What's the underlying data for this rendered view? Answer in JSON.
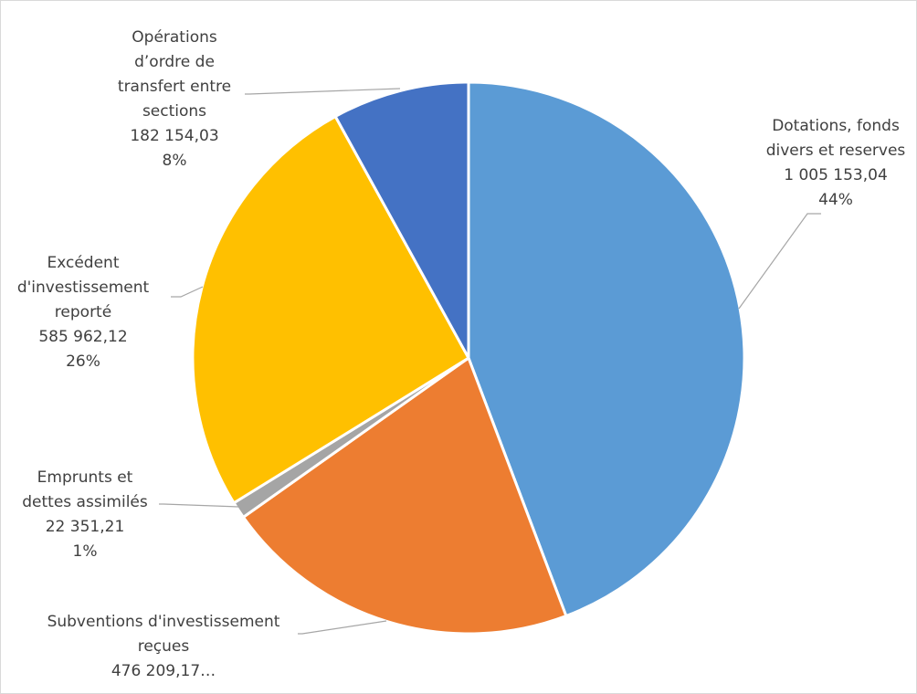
{
  "chart_data": {
    "type": "pie",
    "title": "",
    "slices": [
      {
        "name": "Dotations, fonds divers et reserves",
        "value": 1005153.04,
        "percent": 44,
        "color": "#5b9bd5",
        "label_lines": [
          "Dotations, fonds",
          "divers et reserves",
          "1 005 153,04",
          "44%"
        ]
      },
      {
        "name": "Subventions d'investissement reçues",
        "value": 476209.17,
        "percent": 21,
        "color": "#ed7d31",
        "label_lines": [
          "Subventions d'investissement",
          "reçues",
          "476 209,17…"
        ]
      },
      {
        "name": "Emprunts et dettes assimilés",
        "value": 22351.21,
        "percent": 1,
        "color": "#a5a5a5",
        "label_lines": [
          "Emprunts et",
          "dettes assimilés",
          "22 351,21",
          "1%"
        ]
      },
      {
        "name": "Excédent d'investissement reporté",
        "value": 585962.12,
        "percent": 26,
        "color": "#ffc000",
        "label_lines": [
          "Excédent",
          "d'investissement",
          "reporté",
          "585 962,12",
          "26%"
        ]
      },
      {
        "name": "Opérations d’ordre de transfert entre sections",
        "value": 182154.03,
        "percent": 8,
        "color": "#4472c4",
        "label_lines": [
          "Opérations",
          "d’ordre de",
          "transfert entre",
          "sections",
          "182 154,03",
          "8%"
        ]
      }
    ],
    "legend": "none",
    "start_angle": "12 o'clock, clockwise"
  }
}
